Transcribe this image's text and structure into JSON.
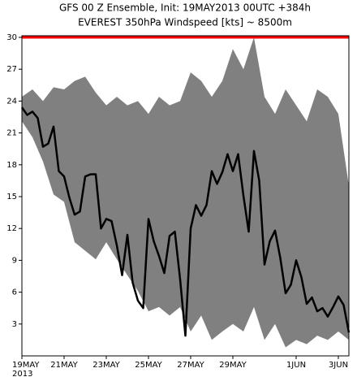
{
  "chart_data": {
    "type": "ensemble",
    "title": "GFS 00 Z Ensemble, Init: 19MAY2013  00UTC +384h",
    "subtitle": "EVEREST 350hPa Windspeed [kts] ~ 8500m",
    "xlim": [
      0,
      372
    ],
    "ylim": [
      0,
      30
    ],
    "yticks": [
      3,
      6,
      9,
      12,
      15,
      18,
      21,
      24,
      27,
      30
    ],
    "xticks": [
      {
        "value": 0,
        "label": "19MAY"
      },
      {
        "value": 48,
        "label": "21MAY"
      },
      {
        "value": 96,
        "label": "23MAY"
      },
      {
        "value": 144,
        "label": "25MAY"
      },
      {
        "value": 192,
        "label": "27MAY"
      },
      {
        "value": 240,
        "label": "29MAY"
      },
      {
        "value": 312,
        "label": "1JUN"
      },
      {
        "value": 360,
        "label": "3JUN"
      }
    ],
    "year_label": "2013",
    "reference_line": {
      "value": 30,
      "color": "#ff0000"
    },
    "envelope": {
      "color": "#808080",
      "x": [
        0,
        12,
        24,
        36,
        48,
        60,
        72,
        84,
        96,
        108,
        120,
        132,
        144,
        156,
        168,
        180,
        192,
        204,
        216,
        228,
        240,
        252,
        264,
        276,
        288,
        300,
        312,
        324,
        336,
        348,
        360,
        372
      ],
      "upper": [
        24.4,
        25.1,
        24.0,
        25.3,
        25.1,
        25.9,
        26.3,
        24.8,
        23.6,
        24.4,
        23.6,
        24.0,
        22.8,
        24.4,
        23.6,
        24.0,
        26.7,
        25.9,
        24.4,
        25.9,
        28.9,
        27.0,
        30.0,
        24.4,
        22.8,
        25.1,
        23.6,
        22.1,
        25.1,
        24.4,
        22.8,
        16.0
      ],
      "lower": [
        22.1,
        20.6,
        18.3,
        15.2,
        14.5,
        10.7,
        9.9,
        9.1,
        10.7,
        9.1,
        7.6,
        6.1,
        4.2,
        4.6,
        3.8,
        4.6,
        2.3,
        3.8,
        1.5,
        2.3,
        3.0,
        2.3,
        4.6,
        1.5,
        3.0,
        0.8,
        1.5,
        1.1,
        1.9,
        1.5,
        2.3,
        1.5
      ]
    },
    "mean": {
      "color": "#000000",
      "x": [
        0,
        6,
        12,
        18,
        24,
        30,
        36,
        42,
        48,
        54,
        60,
        66,
        72,
        78,
        84,
        90,
        96,
        102,
        108,
        114,
        120,
        126,
        132,
        138,
        144,
        150,
        156,
        162,
        168,
        174,
        180,
        186,
        192,
        198,
        204,
        210,
        216,
        222,
        228,
        234,
        240,
        246,
        252,
        258,
        264,
        270,
        276,
        282,
        288,
        294,
        300,
        306,
        312,
        318,
        324,
        330,
        336,
        342,
        348,
        354,
        360,
        366,
        372
      ],
      "values": [
        23.4,
        22.7,
        23.0,
        22.4,
        19.7,
        20.0,
        21.6,
        17.4,
        16.9,
        14.9,
        13.3,
        13.6,
        16.9,
        17.1,
        17.1,
        12.0,
        12.9,
        12.7,
        10.4,
        7.6,
        11.4,
        6.9,
        5.2,
        4.5,
        12.9,
        10.8,
        9.4,
        7.8,
        11.3,
        11.7,
        7.2,
        1.9,
        12.0,
        14.2,
        13.2,
        14.2,
        17.4,
        16.2,
        17.3,
        19.0,
        17.4,
        19.0,
        15.1,
        11.7,
        19.3,
        16.5,
        8.6,
        10.8,
        11.8,
        9.2,
        5.9,
        6.7,
        9.0,
        7.4,
        4.9,
        5.5,
        4.2,
        4.5,
        3.7,
        4.6,
        5.6,
        4.8,
        2.2
      ]
    }
  }
}
